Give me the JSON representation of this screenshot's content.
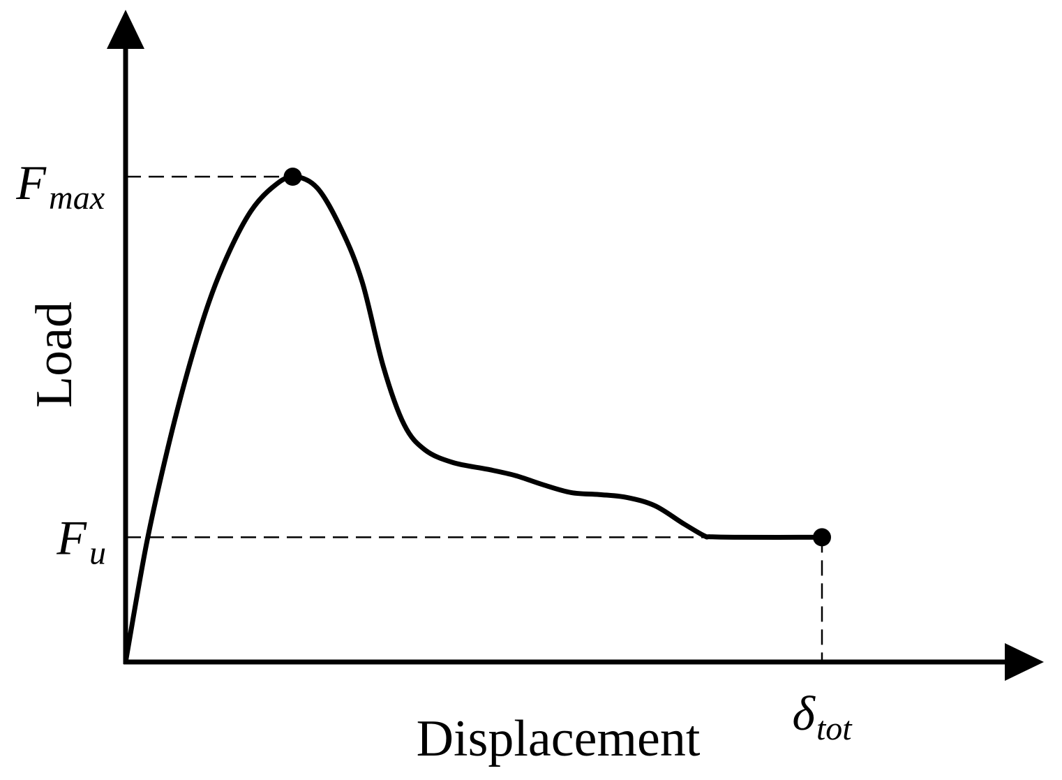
{
  "chart_data": {
    "type": "line",
    "xlabel": "Displacement",
    "ylabel": "Load",
    "xlim": [
      0,
      1.0
    ],
    "ylim": [
      0,
      1.0
    ],
    "grid": false,
    "legend": "none",
    "line_color": "#000000",
    "series": [
      {
        "points": [
          [
            0.0,
            0.0
          ],
          [
            0.03,
            0.243
          ],
          [
            0.06,
            0.437
          ],
          [
            0.09,
            0.603
          ],
          [
            0.12,
            0.743
          ],
          [
            0.15,
            0.849
          ],
          [
            0.18,
            0.929
          ],
          [
            0.21,
            0.977
          ],
          [
            0.24,
            1.0
          ],
          [
            0.275,
            0.977
          ],
          [
            0.31,
            0.891
          ],
          [
            0.34,
            0.782
          ],
          [
            0.37,
            0.609
          ],
          [
            0.4,
            0.489
          ],
          [
            0.43,
            0.437
          ],
          [
            0.47,
            0.411
          ],
          [
            0.52,
            0.397
          ],
          [
            0.56,
            0.384
          ],
          [
            0.6,
            0.365
          ],
          [
            0.64,
            0.349
          ],
          [
            0.68,
            0.345
          ],
          [
            0.72,
            0.339
          ],
          [
            0.76,
            0.322
          ],
          [
            0.8,
            0.286
          ],
          [
            0.831,
            0.26
          ],
          [
            0.84,
            0.258
          ],
          [
            0.88,
            0.257
          ],
          [
            1.0,
            0.257
          ]
        ]
      }
    ],
    "annotations": {
      "f_max": {
        "symbol": "F",
        "subscript": "max",
        "value": 1.0,
        "at_x": 0.24
      },
      "f_u": {
        "symbol": "F",
        "subscript": "u",
        "value": 0.257,
        "at_x": 1.0
      },
      "delta_tot": {
        "symbol": "δ",
        "subscript": "tot",
        "value": 1.0
      }
    }
  }
}
